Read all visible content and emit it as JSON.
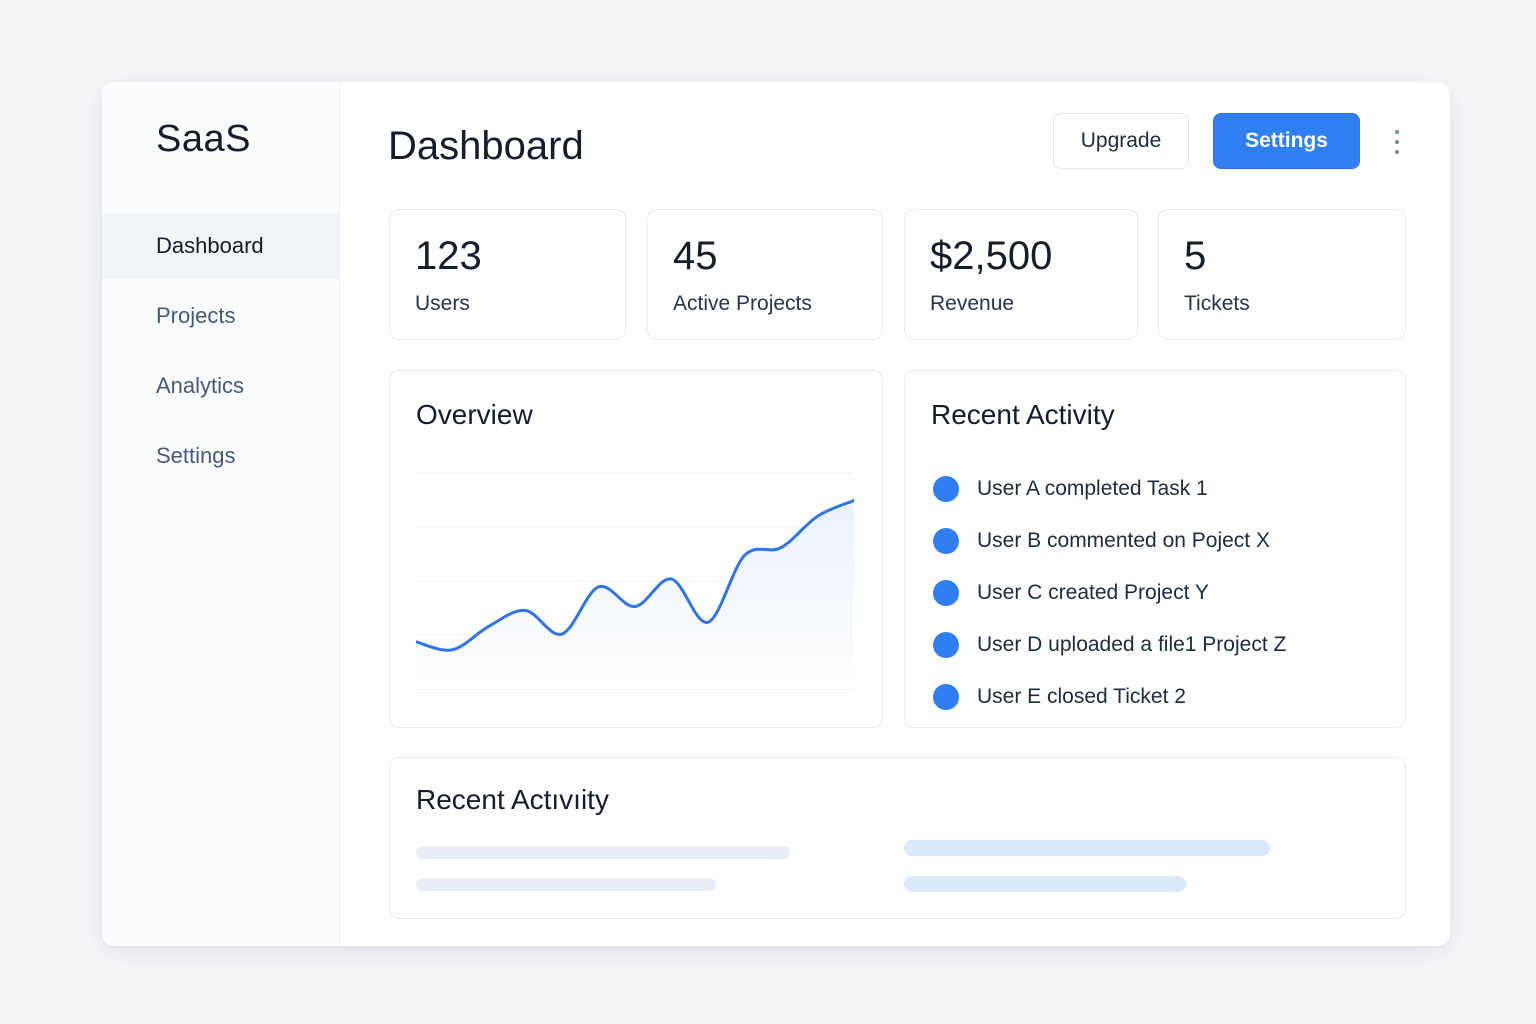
{
  "app": {
    "name": "SaaS"
  },
  "sidebar": {
    "items": [
      {
        "label": "Dashboard",
        "active": true
      },
      {
        "label": "Projects",
        "active": false
      },
      {
        "label": "Analytics",
        "active": false
      },
      {
        "label": "Settings",
        "active": false
      }
    ]
  },
  "header": {
    "title": "Dashboard",
    "upgrade_label": "Upgrade",
    "settings_label": "Settings",
    "more_icon": "more-vertical-icon"
  },
  "stats": [
    {
      "value": "123",
      "label": "Users"
    },
    {
      "value": "45",
      "label": "Active Projects"
    },
    {
      "value": "$2,500",
      "label": "Revenue"
    },
    {
      "value": "5",
      "label": "Tickets"
    }
  ],
  "overview": {
    "title": "Overview",
    "chart_data": {
      "type": "area",
      "x": [
        0,
        1,
        2,
        3,
        4,
        5,
        6,
        7,
        8,
        9,
        10,
        11,
        12
      ],
      "values": [
        12,
        10,
        16,
        20,
        14,
        26,
        21,
        28,
        17,
        34,
        36,
        44,
        48
      ],
      "ylim": [
        0,
        55
      ],
      "grid": true,
      "line_color": "#2f74e8",
      "fill_color": "#eaf1fc"
    }
  },
  "recent_activity": {
    "title": "Recent Activity",
    "items": [
      "User A completed Task 1",
      "User B commented on Poject X",
      "User C created Project Y",
      "User D uploaded a file1 Project Z",
      "User E closed Ticket 2"
    ]
  },
  "recent_activity_bottom": {
    "title": "Recent Actıvıity"
  },
  "colors": {
    "accent": "#2f80f3",
    "activity_dot": "#2f7ff2",
    "placeholder_gray": "#e9eef5",
    "placeholder_blue": "#dbe7fa"
  }
}
